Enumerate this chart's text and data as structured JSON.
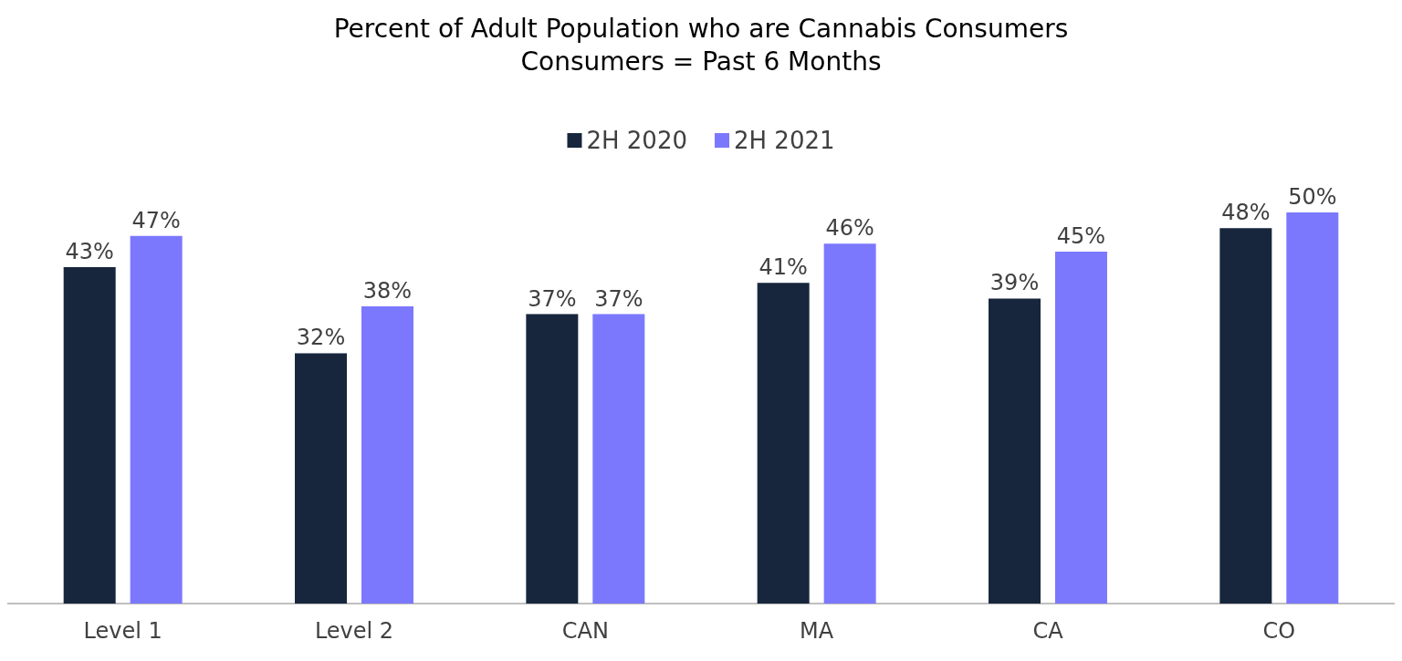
{
  "chart_data": {
    "type": "bar",
    "title": "Percent of Adult Population who are Cannabis Consumers",
    "subtitle": "Consumers = Past 6 Months",
    "categories": [
      "Level 1",
      "Level 2",
      "CAN",
      "MA",
      "CA",
      "CO"
    ],
    "series": [
      {
        "name": "2H 2020",
        "color": "#17263c",
        "values": [
          43,
          32,
          37,
          41,
          39,
          48
        ],
        "value_labels": [
          "43%",
          "32%",
          "37%",
          "41%",
          "39%",
          "48%"
        ]
      },
      {
        "name": "2H 2021",
        "color": "#7b78fe",
        "values": [
          47,
          38,
          37,
          46,
          45,
          50
        ],
        "value_labels": [
          "47%",
          "38%",
          "37%",
          "46%",
          "45%",
          "50%"
        ]
      }
    ],
    "ylim": [
      0,
      50
    ],
    "tick_labels": "x",
    "grid": false,
    "legend": "top"
  }
}
